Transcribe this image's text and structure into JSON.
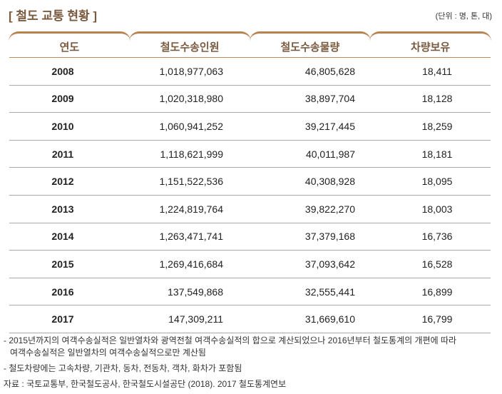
{
  "title": "[ 철도 교통 현황 ]",
  "unit": "(단위 : 명, 톤, 대)",
  "headers": [
    "연도",
    "철도수송인원",
    "철도수송물량",
    "차량보유"
  ],
  "rows": [
    [
      "2008",
      "1,018,977,063",
      "46,805,628",
      "18,411"
    ],
    [
      "2009",
      "1,020,318,980",
      "38,897,704",
      "18,128"
    ],
    [
      "2010",
      "1,060,941,252",
      "39,217,445",
      "18,259"
    ],
    [
      "2011",
      "1,118,621,999",
      "40,011,987",
      "18,181"
    ],
    [
      "2012",
      "1,151,522,536",
      "40,308,928",
      "18,095"
    ],
    [
      "2013",
      "1,224,819,764",
      "39,822,270",
      "18,003"
    ],
    [
      "2014",
      "1,263,471,741",
      "37,379,168",
      "16,736"
    ],
    [
      "2015",
      "1,269,416,684",
      "37,093,642",
      "16,528"
    ],
    [
      "2016",
      "137,549,868",
      "32,555,441",
      "16,899"
    ],
    [
      "2017",
      "147,309,211",
      "31,669,610",
      "16,799"
    ]
  ],
  "notes": {
    "note1_line1": "- 2015년까지의 여객수송실적은 일반열차와 광역전철 여객수송실적의 합으로 계산되었으나 2016년부터 철도통계의 개편에 따라",
    "note1_line2": "여객수송실적은 일반열차의 여객수송실적으로만 계산됨",
    "note2": "- 철도차량에는 고속차량, 기관차, 동차, 전동차, 객차, 화차가 포함됨",
    "source": "자료 : 국토교통부, 한국철도공사, 한국철도시설공단 (2018). 2017 철도통계연보"
  }
}
